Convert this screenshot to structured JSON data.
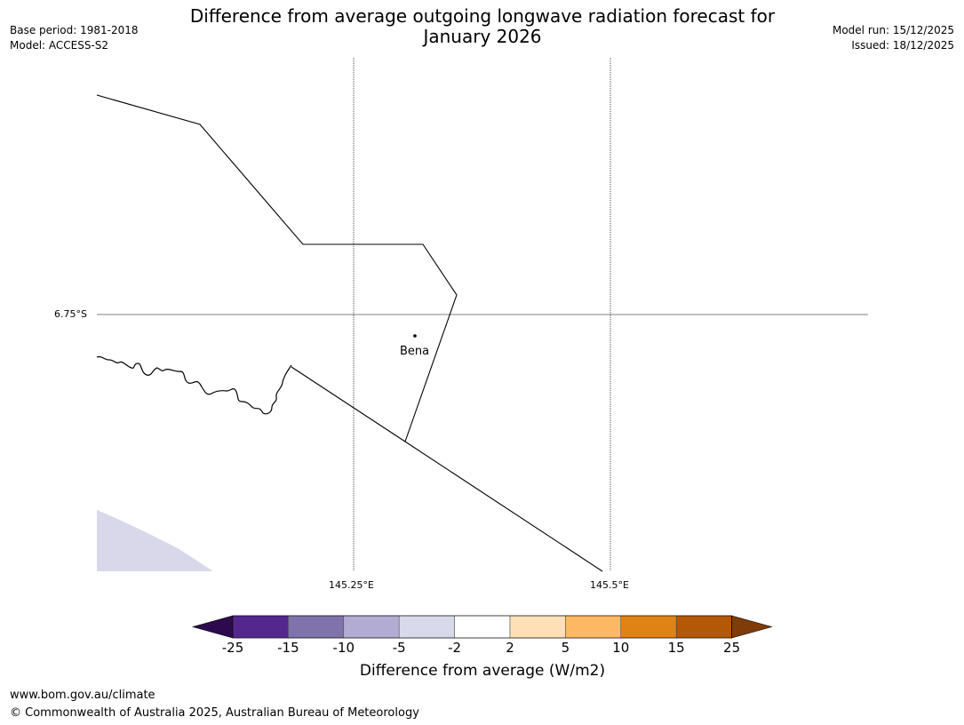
{
  "header": {
    "title_line1": "Difference from average outgoing longwave radiation forecast for",
    "title_line2": "January 2026",
    "base_period": "Base period: 1981-2018",
    "model": "Model: ACCESS-S2",
    "model_run": "Model run: 15/12/2025",
    "issued": "Issued: 18/12/2025"
  },
  "map": {
    "gridlines": {
      "lat_label": "6.75°S",
      "lon_labels": [
        "145.25°E",
        "145.5°E"
      ]
    },
    "places": [
      {
        "name": "Bena"
      }
    ],
    "colors": {
      "coastline": "#000000",
      "gridline": "#000000",
      "shaded_region": "#d8d8ea"
    }
  },
  "colorbar": {
    "ticks": [
      "-25",
      "-15",
      "-10",
      "-5",
      "-2",
      "2",
      "5",
      "10",
      "15",
      "25"
    ],
    "colors": [
      "#2d0a4e",
      "#54278f",
      "#8073ac",
      "#b2abd2",
      "#d8daeb",
      "#ffffff",
      "#fee0b6",
      "#fdb863",
      "#e08214",
      "#b35806",
      "#7f3b08"
    ],
    "label": "Difference from average (W/m2)"
  },
  "footer": {
    "url": "www.bom.gov.au/climate",
    "copyright": "© Commonwealth of Australia 2025, Australian Bureau of Meteorology"
  }
}
